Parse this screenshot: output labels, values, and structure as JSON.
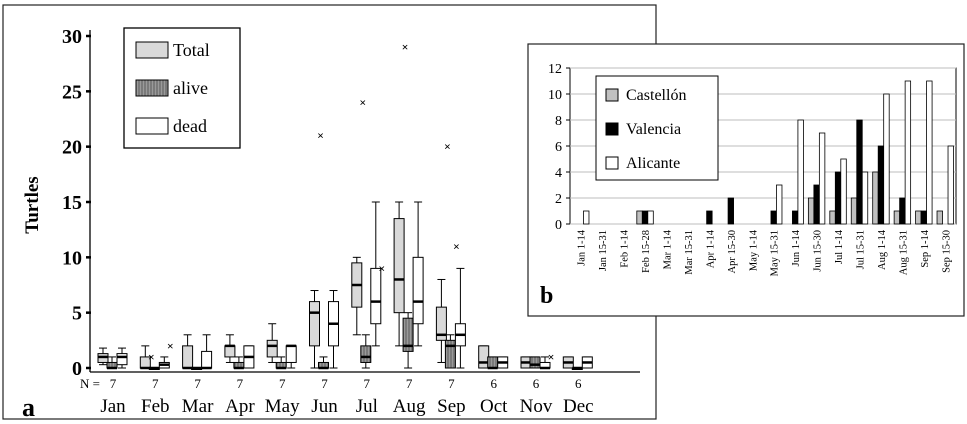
{
  "chart_data": [
    {
      "panel_label": "a",
      "type": "box",
      "ylabel": "Turtles",
      "ylim": [
        0,
        30
      ],
      "yticks": [
        "0",
        "5",
        "10",
        "15",
        "20",
        "25",
        "30"
      ],
      "n_prefix": "N =",
      "categories": [
        "Jan",
        "Feb",
        "Mar",
        "Apr",
        "May",
        "Jun",
        "Jul",
        "Aug",
        "Sep",
        "Oct",
        "Nov",
        "Dec"
      ],
      "n_values": [
        "7",
        "7",
        "7",
        "7",
        "7",
        "7",
        "7",
        "7",
        "7",
        "6",
        "6",
        "6"
      ],
      "legend": [
        "Total",
        "alive",
        "dead"
      ],
      "colors": {
        "Total": "#d9d9d9",
        "alive": "#8c8c8c",
        "dead": "#ffffff"
      },
      "series": [
        {
          "name": "Total",
          "boxes": [
            {
              "min": 0.3,
              "q1": 0.5,
              "median": 1,
              "q3": 1.3,
              "max": 1.8,
              "outliers": []
            },
            {
              "min": 0,
              "q1": 0,
              "median": 0,
              "q3": 1,
              "max": 2,
              "outliers": [
                1
              ]
            },
            {
              "min": 0,
              "q1": 0,
              "median": 0,
              "q3": 2,
              "max": 3,
              "outliers": []
            },
            {
              "min": 0.5,
              "q1": 1,
              "median": 2,
              "q3": 2,
              "max": 3,
              "outliers": []
            },
            {
              "min": 0.5,
              "q1": 1,
              "median": 2,
              "q3": 2.5,
              "max": 4,
              "outliers": []
            },
            {
              "min": 0,
              "q1": 2,
              "median": 5,
              "q3": 6,
              "max": 7,
              "outliers": [
                21
              ]
            },
            {
              "min": 3,
              "q1": 5.5,
              "median": 7.5,
              "q3": 9.5,
              "max": 10,
              "outliers": [
                24
              ]
            },
            {
              "min": 2,
              "q1": 5,
              "median": 8,
              "q3": 13.5,
              "max": 15,
              "outliers": [
                29
              ]
            },
            {
              "min": 0.5,
              "q1": 2.5,
              "median": 3,
              "q3": 5.5,
              "max": 8,
              "outliers": [
                20
              ]
            },
            {
              "min": 0,
              "q1": 0,
              "median": 0.5,
              "q3": 2,
              "max": 2,
              "outliers": []
            },
            {
              "min": 0,
              "q1": 0,
              "median": 0.5,
              "q3": 1,
              "max": 1,
              "outliers": []
            },
            {
              "min": 0,
              "q1": 0,
              "median": 0.5,
              "q3": 1,
              "max": 1,
              "outliers": []
            }
          ]
        },
        {
          "name": "alive",
          "boxes": [
            {
              "min": 0,
              "q1": 0,
              "median": 0,
              "q3": 0.5,
              "max": 1,
              "outliers": []
            },
            {
              "min": 0,
              "q1": 0,
              "median": 0,
              "q3": 0,
              "max": 0,
              "outliers": []
            },
            {
              "min": 0,
              "q1": 0,
              "median": 0,
              "q3": 0,
              "max": 0,
              "outliers": []
            },
            {
              "min": 0,
              "q1": 0,
              "median": 0,
              "q3": 0.5,
              "max": 1,
              "outliers": []
            },
            {
              "min": 0,
              "q1": 0,
              "median": 0,
              "q3": 0.5,
              "max": 1,
              "outliers": []
            },
            {
              "min": 0,
              "q1": 0,
              "median": 0,
              "q3": 0.5,
              "max": 1,
              "outliers": []
            },
            {
              "min": 0,
              "q1": 0.5,
              "median": 1,
              "q3": 2,
              "max": 3,
              "outliers": []
            },
            {
              "min": 0,
              "q1": 1.5,
              "median": 2,
              "q3": 4.5,
              "max": 5,
              "outliers": []
            },
            {
              "min": 0,
              "q1": 0,
              "median": 2,
              "q3": 2.5,
              "max": 3,
              "outliers": [
                11
              ]
            },
            {
              "min": 0,
              "q1": 0,
              "median": 0,
              "q3": 1,
              "max": 1,
              "outliers": []
            },
            {
              "min": 0,
              "q1": 0,
              "median": 0.3,
              "q3": 1,
              "max": 1,
              "outliers": []
            },
            {
              "min": 0,
              "q1": 0,
              "median": 0,
              "q3": 0,
              "max": 0,
              "outliers": []
            }
          ]
        },
        {
          "name": "dead",
          "boxes": [
            {
              "min": 0,
              "q1": 0.3,
              "median": 1,
              "q3": 1.3,
              "max": 1.8,
              "outliers": []
            },
            {
              "min": 0,
              "q1": 0,
              "median": 0.3,
              "q3": 0.5,
              "max": 1,
              "outliers": [
                2
              ]
            },
            {
              "min": 0,
              "q1": 0,
              "median": 0,
              "q3": 1.5,
              "max": 3,
              "outliers": []
            },
            {
              "min": 0,
              "q1": 0,
              "median": 1,
              "q3": 2,
              "max": 2,
              "outliers": []
            },
            {
              "min": 0,
              "q1": 0.5,
              "median": 2,
              "q3": 2,
              "max": 2,
              "outliers": []
            },
            {
              "min": 0,
              "q1": 2,
              "median": 4,
              "q3": 6,
              "max": 7,
              "outliers": []
            },
            {
              "min": 2,
              "q1": 4,
              "median": 6,
              "q3": 9,
              "max": 15,
              "outliers": [
                9
              ]
            },
            {
              "min": 2,
              "q1": 4,
              "median": 6,
              "q3": 10,
              "max": 15,
              "outliers": []
            },
            {
              "min": 0,
              "q1": 2,
              "median": 3,
              "q3": 4,
              "max": 9,
              "outliers": []
            },
            {
              "min": 0,
              "q1": 0,
              "median": 0.5,
              "q3": 1,
              "max": 1,
              "outliers": []
            },
            {
              "min": 0,
              "q1": 0,
              "median": 0,
              "q3": 0.5,
              "max": 1,
              "outliers": [
                1
              ]
            },
            {
              "min": 0,
              "q1": 0,
              "median": 0.5,
              "q3": 1,
              "max": 1,
              "outliers": []
            }
          ]
        }
      ]
    },
    {
      "panel_label": "b",
      "type": "bar",
      "ylim": [
        0,
        12
      ],
      "yticks": [
        "0",
        "2",
        "4",
        "6",
        "8",
        "10",
        "12"
      ],
      "grid": true,
      "legend_position": "top-left",
      "categories": [
        "Jan 1-14",
        "Jan 15-31",
        "Feb 1-14",
        "Feb 15-28",
        "Mar 1-14",
        "Mar 15-31",
        "Apr 1-14",
        "Apr 15-30",
        "May 1-14",
        "May 15-31",
        "Jun 1-14",
        "Jun 15-30",
        "Jul 1-14",
        "Jul 15-31",
        "Aug 1-14",
        "Aug 15-31",
        "Sep 1-14",
        "Sep 15-30"
      ],
      "series": [
        {
          "name": "Castellón",
          "color": "#c0c0c0",
          "values": [
            0,
            0,
            0,
            1,
            0,
            0,
            0,
            0,
            0,
            0,
            0,
            2,
            1,
            2,
            4,
            1,
            1,
            1
          ]
        },
        {
          "name": "Valencia",
          "color": "#000000",
          "values": [
            0,
            0,
            0,
            1,
            0,
            0,
            1,
            2,
            0,
            1,
            1,
            3,
            4,
            8,
            6,
            2,
            1,
            0
          ]
        },
        {
          "name": "Alicante",
          "color": "#ffffff",
          "values": [
            1,
            0,
            0,
            1,
            0,
            0,
            0,
            0,
            0,
            3,
            8,
            7,
            5,
            4,
            10,
            11,
            11,
            6
          ]
        }
      ]
    }
  ]
}
